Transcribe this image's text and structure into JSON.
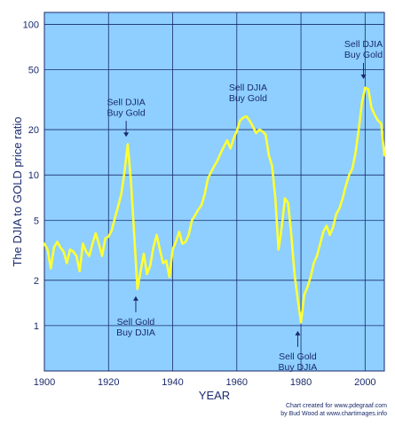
{
  "chart_data": {
    "type": "line",
    "title": "",
    "xlabel": "YEAR",
    "ylabel": "The DJIA to GOLD price ratio",
    "xlim": [
      1900,
      2006
    ],
    "ylim": [
      0.5,
      120
    ],
    "yscale": "log",
    "grid": true,
    "plot_background": "#8ecfff",
    "line_color": "#ffff33",
    "text_color": "#1a2a6c",
    "x_ticks": [
      {
        "value": 1900,
        "label": "1900"
      },
      {
        "value": 1920,
        "label": "1920"
      },
      {
        "value": 1940,
        "label": "1940"
      },
      {
        "value": 1960,
        "label": "1960"
      },
      {
        "value": 1980,
        "label": "1980"
      },
      {
        "value": 2000,
        "label": "2000"
      }
    ],
    "y_ticks": [
      {
        "value": 1,
        "label": "1"
      },
      {
        "value": 2,
        "label": "2"
      },
      {
        "value": 5,
        "label": "5"
      },
      {
        "value": 10,
        "label": "10"
      },
      {
        "value": 20,
        "label": "20"
      },
      {
        "value": 50,
        "label": "50"
      },
      {
        "value": 100,
        "label": "100"
      }
    ],
    "series": [
      {
        "x": [
          1900,
          1901,
          1902,
          1903,
          1904,
          1905,
          1906,
          1907,
          1908,
          1909,
          1910,
          1911,
          1912,
          1913,
          1914,
          1915,
          1916,
          1917,
          1918,
          1919,
          1920,
          1921,
          1922,
          1923,
          1924,
          1925,
          1926,
          1927,
          1928,
          1929,
          1930,
          1931,
          1932,
          1933,
          1934,
          1935,
          1936,
          1937,
          1938,
          1939,
          1940,
          1941,
          1942,
          1943,
          1944,
          1945,
          1946,
          1947,
          1948,
          1949,
          1950,
          1951,
          1952,
          1953,
          1954,
          1955,
          1956,
          1957,
          1958,
          1959,
          1960,
          1961,
          1962,
          1963,
          1964,
          1965,
          1966,
          1967,
          1968,
          1969,
          1970,
          1971,
          1972,
          1973,
          1974,
          1975,
          1976,
          1977,
          1978,
          1979,
          1980,
          1981,
          1982,
          1983,
          1984,
          1985,
          1986,
          1987,
          1988,
          1989,
          1990,
          1991,
          1992,
          1993,
          1994,
          1995,
          1996,
          1997,
          1998,
          1999,
          2000,
          2001,
          2002,
          2003,
          2004,
          2005,
          2006
        ],
        "y": [
          3.5,
          3.2,
          2.4,
          3.3,
          3.6,
          3.3,
          3.1,
          2.6,
          3.2,
          3.1,
          2.9,
          2.3,
          3.5,
          3.1,
          2.9,
          3.5,
          4.1,
          3.5,
          2.9,
          3.8,
          3.9,
          4.3,
          5.2,
          6.2,
          7.5,
          10.5,
          16.0,
          9.0,
          4.0,
          1.75,
          2.3,
          3.0,
          2.2,
          2.5,
          3.3,
          4.0,
          3.2,
          2.6,
          2.7,
          2.1,
          3.2,
          3.6,
          4.2,
          3.5,
          3.6,
          4.0,
          5.0,
          5.4,
          5.9,
          6.3,
          7.5,
          9.5,
          10.5,
          11.5,
          12.5,
          14.0,
          15.5,
          17.0,
          15.0,
          17.5,
          19.5,
          23.0,
          24.0,
          24.5,
          23.0,
          21.0,
          19.0,
          20.0,
          19.5,
          18.5,
          13.5,
          11.5,
          7.0,
          3.2,
          4.5,
          7.0,
          6.5,
          4.0,
          2.2,
          1.5,
          1.05,
          1.6,
          1.8,
          2.1,
          2.6,
          2.9,
          3.5,
          4.2,
          4.6,
          4.0,
          4.5,
          5.5,
          6.0,
          7.0,
          8.5,
          10.0,
          11.0,
          14.0,
          20.0,
          30.0,
          38.0,
          37.0,
          28.0,
          25.0,
          23.0,
          22.0,
          13.5
        ]
      }
    ],
    "annotations": [
      {
        "lines": [
          "Sell DJIA",
          "Buy Gold"
        ],
        "x": 1925.5,
        "y": 16.5,
        "arrow": "down"
      },
      {
        "lines": [
          "Sell DJIA",
          "Buy Gold"
        ],
        "x": 1963.5,
        "y": 27,
        "arrow": "none"
      },
      {
        "lines": [
          "Sell DJIA",
          "Buy Gold"
        ],
        "x": 1999.5,
        "y": 40,
        "arrow": "down"
      },
      {
        "lines": [
          "Sell Gold",
          "Buy DJIA"
        ],
        "x": 1928.5,
        "y": 1.7,
        "arrow": "up"
      },
      {
        "lines": [
          "Sell Gold",
          "Buy DJIA"
        ],
        "x": 1979,
        "y": 1.0,
        "arrow": "up"
      }
    ],
    "credits": [
      "Chart created for www.pdegraaf.com",
      "by Bud Wood at www.chartimages.info"
    ]
  }
}
